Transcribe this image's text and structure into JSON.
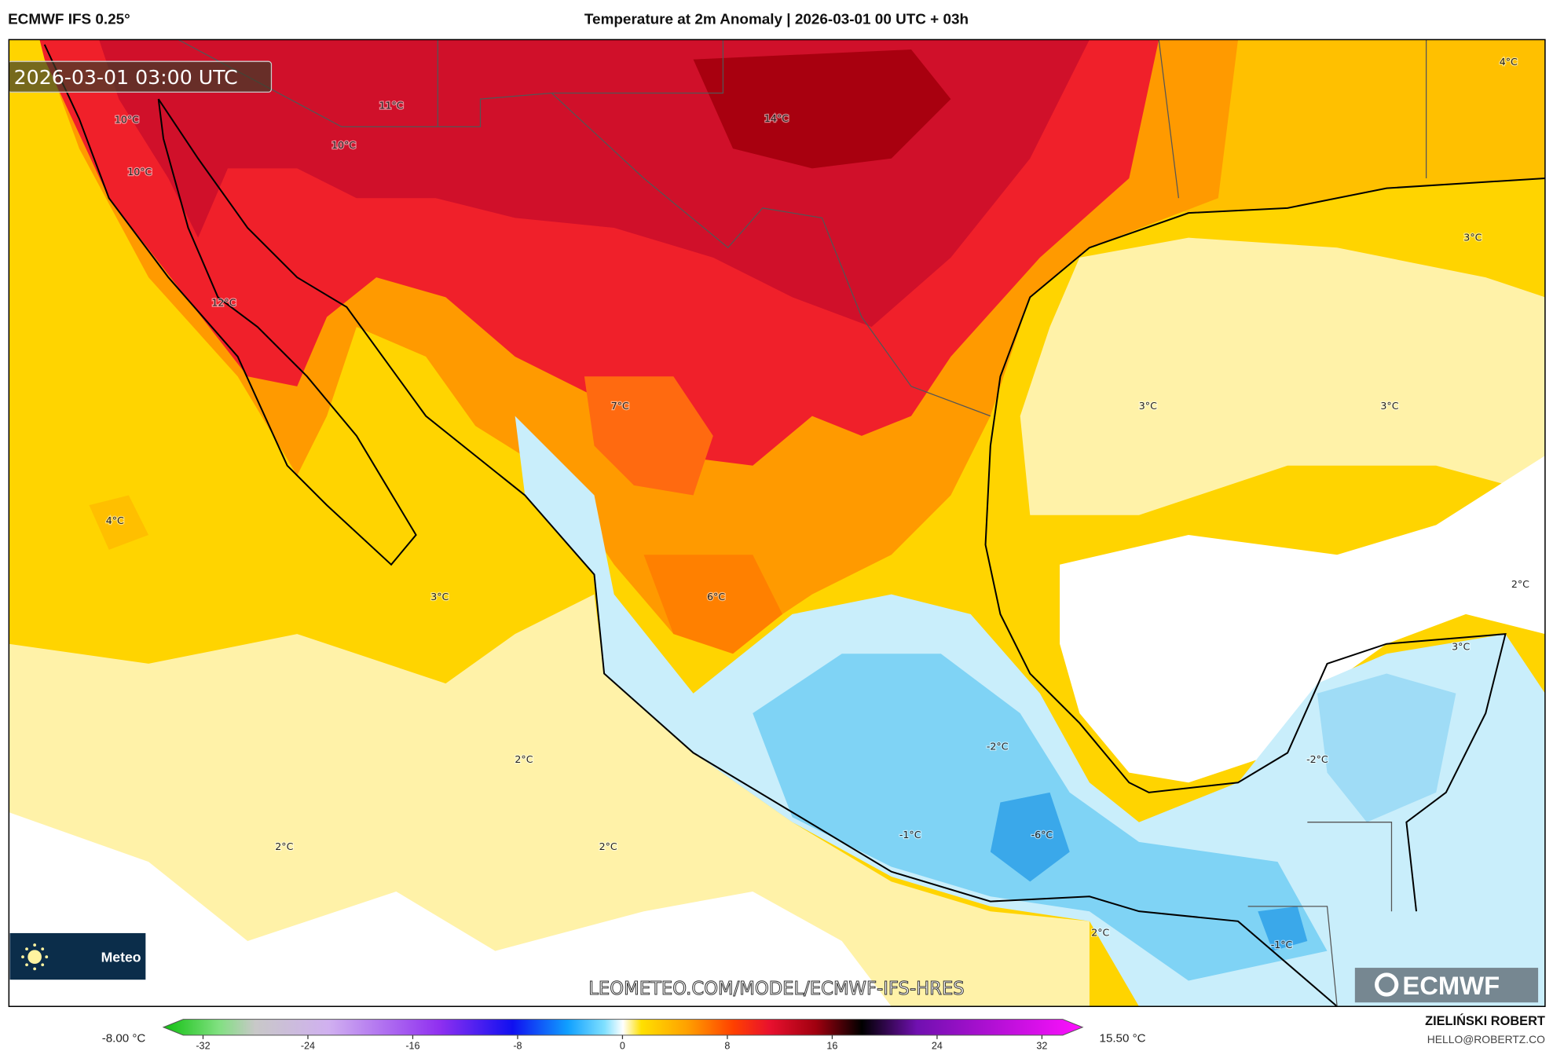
{
  "header": {
    "model": "ECMWF IFS 0.25°",
    "title": "Temperature at 2m Anomaly | 2026-03-01 00 UTC + 03h"
  },
  "map": {
    "valid_time": "2026-03-01 03:00 UTC",
    "labels": [
      "10°C",
      "11°C",
      "10°C",
      "14°C",
      "10°C",
      "4°C",
      "3°C",
      "12°C",
      "7°C",
      "3°C",
      "3°C",
      "4°C",
      "2°C",
      "3°C",
      "6°C",
      "3°C",
      "-2°C",
      "-2°C",
      "2°C",
      "-1°C",
      "-6°C",
      "2°C",
      "2°C",
      "2°C",
      "-1°C"
    ],
    "watermark": "LEOMETEO.COM/MODEL/ECMWF-IFS-HRES",
    "ecmwf_logo": "ECMWF",
    "site_logo": "Meteo"
  },
  "colorbar": {
    "min_label": "-8.00 °C",
    "max_label": "15.50 °C",
    "ticks": [
      "-32",
      "-24",
      "-16",
      "-8",
      "0",
      "8",
      "16",
      "24",
      "32"
    ]
  },
  "credits": {
    "author": "ZIELIŃSKI ROBERT",
    "email": "HELLO@ROBERTZ.CO"
  },
  "colors": {
    "red": "#e8102e",
    "dark_red": "#a0000f",
    "orange": "#ff7f00",
    "yellow": "#ffd400",
    "pale_yellow": "#fff2a8",
    "light_blue": "#b5e8fa",
    "blue": "#4ec2f0"
  }
}
